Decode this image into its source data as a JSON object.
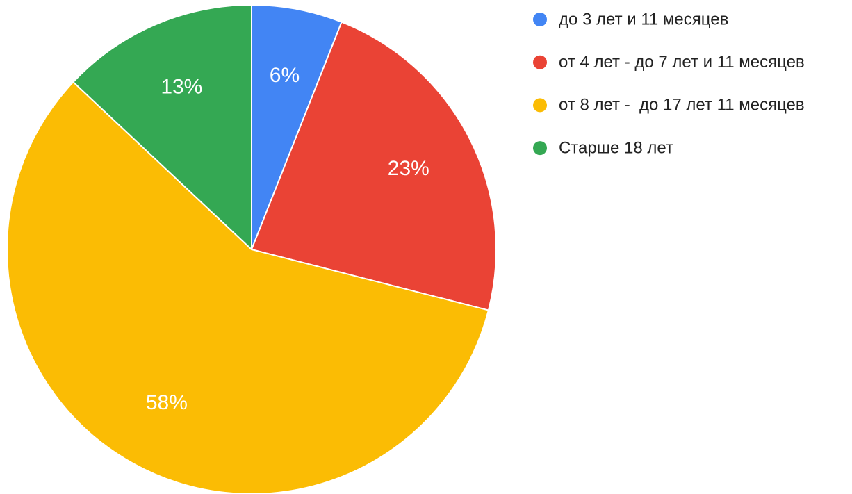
{
  "chart_data": {
    "type": "pie",
    "categories": [
      "до 3 лет и 11 месяцев",
      "от 4 лет - до 7 лет и 11 месяцев",
      "от 8 лет -  до 17 лет 11 месяцев",
      "Старше 18 лет"
    ],
    "values": [
      6,
      23,
      58,
      13
    ],
    "value_labels": [
      "6%",
      "23%",
      "58%",
      "13%"
    ],
    "colors": [
      "#4285f4",
      "#ea4335",
      "#fbbc04",
      "#34a853"
    ],
    "legend": "right"
  }
}
